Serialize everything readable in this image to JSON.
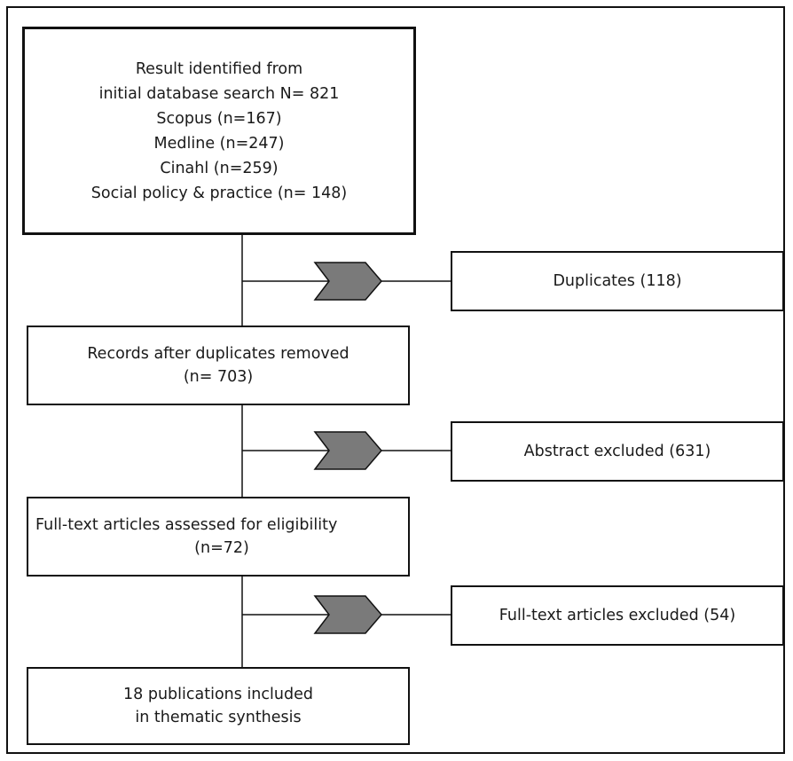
{
  "flow": {
    "box1": {
      "lines": [
        "Result identified from",
        "initial database search N= 821",
        "Scopus (n=167)",
        "Medline (n=247)",
        "Cinahl (n=259)",
        "Social policy & practice (n= 148)"
      ]
    },
    "box2": {
      "lines": [
        "Records after duplicates removed",
        "(n= 703)"
      ]
    },
    "box3": {
      "lines": [
        "Full-text articles assessed for eligibility",
        "(n=72)"
      ]
    },
    "box4": {
      "lines": [
        "18 publications included",
        "in thematic synthesis"
      ]
    },
    "excluded": [
      {
        "label": "Duplicates (118)"
      },
      {
        "label": "Abstract excluded (631)"
      },
      {
        "label": "Full-text articles excluded (54)"
      }
    ]
  },
  "colors": {
    "stroke": "#111111",
    "arrow_fill": "#7a7a7a"
  }
}
